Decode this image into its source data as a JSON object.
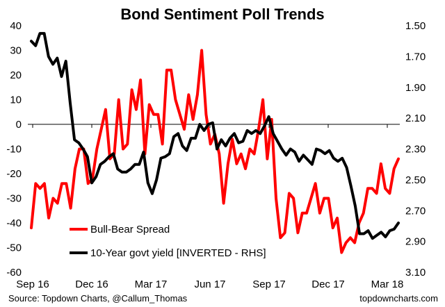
{
  "chart_data": {
    "type": "line",
    "title": "Bond Sentiment Poll Trends",
    "x_tick_labels": [
      "Sep 16",
      "Dec 16",
      "Mar 17",
      "Jun 17",
      "Sep 17",
      "Dec 17",
      "Mar 18"
    ],
    "y_left": {
      "ticks": [
        40,
        30,
        20,
        10,
        0,
        -10,
        -20,
        -30,
        -40,
        -50,
        -60
      ],
      "range": [
        -60,
        40
      ]
    },
    "y_right": {
      "ticks": [
        "1.50",
        "1.70",
        "1.90",
        "2.10",
        "2.30",
        "2.50",
        "2.70",
        "2.90",
        "3.10"
      ],
      "range": [
        1.5,
        3.1
      ],
      "inverted": true
    },
    "legend_position": "lower-left",
    "series": [
      {
        "name": "Bull-Bear Spread",
        "color": "#ff0000",
        "axis": "left",
        "values": [
          -42,
          -24,
          -26,
          -24,
          -38,
          -30,
          -32,
          -24,
          -24,
          -34,
          -18,
          -10,
          -10,
          -24,
          -22,
          -10,
          -2,
          6,
          -14,
          -12,
          10,
          -10,
          -8,
          14,
          6,
          18,
          -12,
          8,
          4,
          4,
          -8,
          22,
          22,
          10,
          4,
          -2,
          12,
          2,
          12,
          30,
          4,
          -8,
          -4,
          -12,
          -32,
          -16,
          -6,
          -16,
          -12,
          -18,
          -10,
          -12,
          -2,
          10,
          -14,
          2,
          -30,
          -46,
          -44,
          -28,
          -30,
          -44,
          -36,
          -36,
          -30,
          -24,
          -36,
          -30,
          -30,
          -42,
          -38,
          -52,
          -48,
          -46,
          -48,
          -40,
          -36,
          -26,
          -26,
          -28,
          -16,
          -26,
          -28,
          -18,
          -14
        ]
      },
      {
        "name": "10-Year govt yield [INVERTED - RHS]",
        "color": "#000000",
        "axis": "right",
        "values": [
          1.6,
          1.63,
          1.55,
          1.55,
          1.7,
          1.75,
          1.71,
          1.83,
          1.73,
          2.0,
          2.24,
          2.26,
          2.3,
          2.35,
          2.52,
          2.48,
          2.4,
          2.38,
          2.35,
          2.33,
          2.43,
          2.45,
          2.45,
          2.43,
          2.4,
          2.4,
          2.32,
          2.52,
          2.59,
          2.5,
          2.36,
          2.35,
          2.33,
          2.22,
          2.2,
          2.28,
          2.31,
          2.23,
          2.23,
          2.14,
          2.18,
          2.14,
          2.13,
          2.3,
          2.24,
          2.28,
          2.23,
          2.2,
          2.26,
          2.25,
          2.18,
          2.2,
          2.18,
          2.2,
          2.15,
          2.09,
          2.2,
          2.25,
          2.3,
          2.34,
          2.3,
          2.32,
          2.38,
          2.34,
          2.37,
          2.4,
          2.3,
          2.31,
          2.33,
          2.31,
          2.36,
          2.38,
          2.36,
          2.42,
          2.54,
          2.67,
          2.85,
          2.85,
          2.83,
          2.88,
          2.86,
          2.84,
          2.87,
          2.83,
          2.82,
          2.78
        ]
      }
    ]
  },
  "footer": {
    "source": "Source: Topdown Charts, @Callum_Thomas",
    "brand": "topdowncharts.com"
  }
}
